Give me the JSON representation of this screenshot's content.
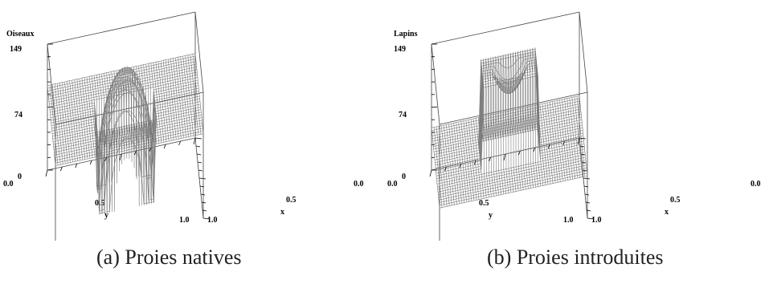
{
  "chart_data": [
    {
      "type": "surface",
      "id": "a",
      "zlabel": "Oiseaux",
      "zticks": [
        "149",
        "74",
        "0"
      ],
      "zlim": [
        0,
        149
      ],
      "xlabel": "x",
      "ylabel": "y",
      "xticks": [
        "0.0",
        "0.5",
        "1.0"
      ],
      "yticks": [
        "0.0",
        "0.5",
        "1.0"
      ],
      "xlim": [
        0,
        1
      ],
      "ylim": [
        0,
        1
      ],
      "surface": {
        "outside_level": 100,
        "inner_square": [
          0.3,
          0.7
        ],
        "inner_level": 0,
        "center_peak": 149,
        "peak_radius": 0.2
      },
      "caption": "(a) Proies natives"
    },
    {
      "type": "surface",
      "id": "b",
      "zlabel": "Lapins",
      "zticks": [
        "149",
        "74",
        "0"
      ],
      "zlim": [
        0,
        149
      ],
      "xlabel": "x",
      "ylabel": "y",
      "xticks": [
        "0.0",
        "0.5",
        "1.0"
      ],
      "yticks": [
        "0.0",
        "0.5",
        "1.0"
      ],
      "xlim": [
        0,
        1
      ],
      "ylim": [
        0,
        1
      ],
      "surface": {
        "outside_level": 50,
        "inner_square": [
          0.3,
          0.7
        ],
        "inner_level": 149,
        "center_dip": 120,
        "dip_radius": 0.12
      },
      "caption": "(b) Proies introduites"
    }
  ]
}
